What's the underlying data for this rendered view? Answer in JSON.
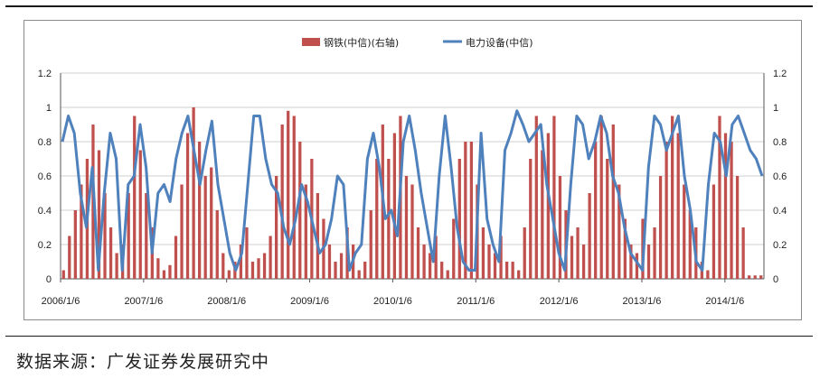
{
  "source_note": "数据来源：广发证券发展研究中",
  "chart_data": {
    "type": "bar+line",
    "colors": {
      "bars": "#c0504d",
      "line": "#4f81bd"
    },
    "legend": [
      "钢铁(中信)(右轴)",
      "电力设备(中信)"
    ],
    "legend_position": "top-center",
    "x_ticks": [
      "2006/1/6",
      "2007/1/6",
      "2008/1/6",
      "2009/1/6",
      "2010/1/6",
      "2011/1/6",
      "2012/1/6",
      "2013/1/6",
      "2014/1/6"
    ],
    "x_range": [
      "2006/1/6",
      "2014/6/27"
    ],
    "y_left": {
      "lim": [
        0,
        1.2
      ],
      "ticks": [
        "0",
        "0.2",
        "0.4",
        "0.6",
        "0.8",
        "1",
        "1.2"
      ]
    },
    "y_right": {
      "lim": [
        0,
        1.2
      ],
      "ticks": [
        "0",
        "0.2",
        "0.4",
        "0.6",
        "0.8",
        "1",
        "1.2"
      ]
    },
    "grid": "horizontal",
    "series": [
      {
        "name": "钢铁(中信)(右轴)",
        "type": "bar",
        "axis": "right",
        "values": [
          0.05,
          0.25,
          0.4,
          0.55,
          0.7,
          0.9,
          0.75,
          0.5,
          0.3,
          0.15,
          0.2,
          0.5,
          0.95,
          0.75,
          0.5,
          0.3,
          0.12,
          0.05,
          0.08,
          0.25,
          0.55,
          0.85,
          1.0,
          0.8,
          0.6,
          0.65,
          0.4,
          0.15,
          0.05,
          0.1,
          0.2,
          0.3,
          0.1,
          0.12,
          0.15,
          0.25,
          0.6,
          0.9,
          0.98,
          0.95,
          0.8,
          0.55,
          0.7,
          0.5,
          0.35,
          0.2,
          0.1,
          0.15,
          0.3,
          0.2,
          0.05,
          0.1,
          0.4,
          0.7,
          0.9,
          0.7,
          0.85,
          0.95,
          0.6,
          0.55,
          0.3,
          0.2,
          0.15,
          0.25,
          0.1,
          0.05,
          0.35,
          0.7,
          0.8,
          0.8,
          0.55,
          0.3,
          0.2,
          0.15,
          0.25,
          0.1,
          0.1,
          0.05,
          0.3,
          0.7,
          0.95,
          0.75,
          0.85,
          0.95,
          0.6,
          0.4,
          0.25,
          0.3,
          0.2,
          0.5,
          0.8,
          0.95,
          0.7,
          0.9,
          0.55,
          0.35,
          0.2,
          0.15,
          0.35,
          0.2,
          0.3,
          0.6,
          0.8,
          0.95,
          0.85,
          0.55,
          0.4,
          0.3,
          0.1,
          0.05,
          0.55,
          0.95,
          0.85,
          0.8,
          0.6,
          0.3,
          0.02,
          0.02,
          0.02
        ]
      },
      {
        "name": "电力设备(中信)",
        "type": "line",
        "axis": "left",
        "values": [
          0.8,
          0.95,
          0.85,
          0.5,
          0.3,
          0.65,
          0.05,
          0.5,
          0.85,
          0.7,
          0.05,
          0.55,
          0.6,
          0.9,
          0.65,
          0.15,
          0.5,
          0.55,
          0.45,
          0.7,
          0.85,
          0.95,
          0.75,
          0.55,
          0.75,
          0.92,
          0.55,
          0.35,
          0.15,
          0.05,
          0.15,
          0.55,
          0.95,
          0.95,
          0.7,
          0.55,
          0.5,
          0.3,
          0.2,
          0.35,
          0.55,
          0.45,
          0.3,
          0.15,
          0.2,
          0.35,
          0.6,
          0.55,
          0.05,
          0.15,
          0.2,
          0.7,
          0.85,
          0.65,
          0.35,
          0.4,
          0.25,
          0.8,
          0.95,
          0.75,
          0.5,
          0.3,
          0.1,
          0.6,
          0.95,
          0.65,
          0.3,
          0.1,
          0.05,
          0.05,
          0.85,
          0.35,
          0.2,
          0.1,
          0.75,
          0.85,
          0.98,
          0.9,
          0.8,
          0.85,
          0.9,
          0.55,
          0.35,
          0.15,
          0.05,
          0.55,
          0.95,
          0.9,
          0.7,
          0.8,
          0.95,
          0.85,
          0.6,
          0.5,
          0.3,
          0.15,
          0.1,
          0.05,
          0.65,
          0.95,
          0.9,
          0.75,
          0.85,
          0.95,
          0.6,
          0.4,
          0.1,
          0.05,
          0.55,
          0.85,
          0.8,
          0.6,
          0.9,
          0.95,
          0.85,
          0.75,
          0.7,
          0.6
        ]
      }
    ]
  }
}
